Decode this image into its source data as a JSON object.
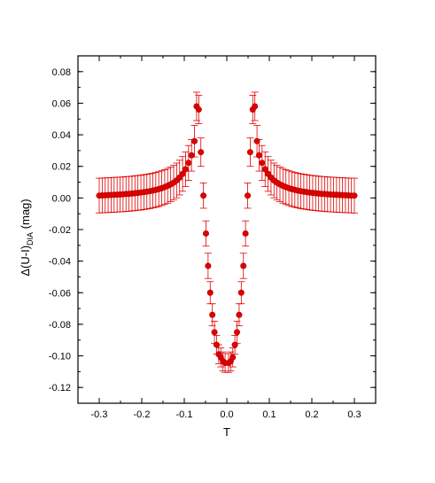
{
  "chart_data": {
    "type": "scatter",
    "xlabel": "T",
    "ylabel": {
      "prefix": "Δ(U-I)",
      "subscript": "DIA",
      "suffix": " (mag)"
    },
    "xlim": [
      -0.35,
      0.35
    ],
    "ylim": [
      -0.13,
      0.09
    ],
    "xticks": [
      -0.3,
      -0.2,
      -0.1,
      0.0,
      0.1,
      0.2,
      0.3
    ],
    "xtick_labels": [
      "-0.3",
      "-0.2",
      "-0.1",
      "0.0",
      "0.1",
      "0.2",
      "0.3"
    ],
    "yticks": [
      0.08,
      0.06,
      0.04,
      0.02,
      0.0,
      -0.02,
      -0.04,
      -0.06,
      -0.08,
      -0.1,
      -0.12
    ],
    "ytick_labels": [
      "0.08",
      "0.06",
      "0.04",
      "0.02",
      "0.00",
      "-0.02",
      "-0.04",
      "-0.06",
      "-0.08",
      "-0.10",
      "-0.12"
    ],
    "grid": false,
    "marker_color": "#e00000",
    "series": [
      {
        "points": [
          {
            "x": -0.3,
            "y": 0.0015,
            "err": 0.011
          },
          {
            "x": -0.293,
            "y": 0.0016,
            "err": 0.011
          },
          {
            "x": -0.286,
            "y": 0.0017,
            "err": 0.011
          },
          {
            "x": -0.279,
            "y": 0.0018,
            "err": 0.011
          },
          {
            "x": -0.272,
            "y": 0.0019,
            "err": 0.011
          },
          {
            "x": -0.265,
            "y": 0.002,
            "err": 0.011
          },
          {
            "x": -0.258,
            "y": 0.0021,
            "err": 0.011
          },
          {
            "x": -0.251,
            "y": 0.0022,
            "err": 0.011
          },
          {
            "x": -0.244,
            "y": 0.0023,
            "err": 0.011
          },
          {
            "x": -0.237,
            "y": 0.0025,
            "err": 0.011
          },
          {
            "x": -0.23,
            "y": 0.0026,
            "err": 0.011
          },
          {
            "x": -0.223,
            "y": 0.0028,
            "err": 0.011
          },
          {
            "x": -0.216,
            "y": 0.003,
            "err": 0.011
          },
          {
            "x": -0.209,
            "y": 0.0032,
            "err": 0.011
          },
          {
            "x": -0.202,
            "y": 0.0034,
            "err": 0.011
          },
          {
            "x": -0.195,
            "y": 0.0037,
            "err": 0.011
          },
          {
            "x": -0.188,
            "y": 0.004,
            "err": 0.011
          },
          {
            "x": -0.181,
            "y": 0.0043,
            "err": 0.011
          },
          {
            "x": -0.174,
            "y": 0.0047,
            "err": 0.011
          },
          {
            "x": -0.167,
            "y": 0.0051,
            "err": 0.011
          },
          {
            "x": -0.16,
            "y": 0.0056,
            "err": 0.011
          },
          {
            "x": -0.153,
            "y": 0.0062,
            "err": 0.011
          },
          {
            "x": -0.146,
            "y": 0.0069,
            "err": 0.011
          },
          {
            "x": -0.139,
            "y": 0.0077,
            "err": 0.011
          },
          {
            "x": -0.132,
            "y": 0.0086,
            "err": 0.011
          },
          {
            "x": -0.125,
            "y": 0.0097,
            "err": 0.011
          },
          {
            "x": -0.118,
            "y": 0.0111,
            "err": 0.011
          },
          {
            "x": -0.111,
            "y": 0.0129,
            "err": 0.011
          },
          {
            "x": -0.104,
            "y": 0.0152,
            "err": 0.011
          },
          {
            "x": -0.097,
            "y": 0.0182,
            "err": 0.011
          },
          {
            "x": -0.09,
            "y": 0.0222,
            "err": 0.011
          },
          {
            "x": -0.083,
            "y": 0.027,
            "err": 0.01
          },
          {
            "x": -0.076,
            "y": 0.036,
            "err": 0.01
          },
          {
            "x": -0.071,
            "y": 0.058,
            "err": 0.009
          },
          {
            "x": -0.066,
            "y": 0.056,
            "err": 0.009
          },
          {
            "x": -0.061,
            "y": 0.029,
            "err": 0.009
          },
          {
            "x": -0.055,
            "y": 0.0015,
            "err": 0.008
          },
          {
            "x": -0.049,
            "y": -0.0225,
            "err": 0.008
          },
          {
            "x": -0.044,
            "y": -0.043,
            "err": 0.008
          },
          {
            "x": -0.039,
            "y": -0.06,
            "err": 0.007
          },
          {
            "x": -0.034,
            "y": -0.074,
            "err": 0.007
          },
          {
            "x": -0.029,
            "y": -0.085,
            "err": 0.007
          },
          {
            "x": -0.024,
            "y": -0.093,
            "err": 0.006
          },
          {
            "x": -0.019,
            "y": -0.099,
            "err": 0.006
          },
          {
            "x": -0.014,
            "y": -0.101,
            "err": 0.006
          },
          {
            "x": -0.009,
            "y": -0.1035,
            "err": 0.006
          },
          {
            "x": -0.004,
            "y": -0.1045,
            "err": 0.006
          },
          {
            "x": 0.004,
            "y": -0.1045,
            "err": 0.006
          },
          {
            "x": 0.009,
            "y": -0.1035,
            "err": 0.006
          },
          {
            "x": 0.014,
            "y": -0.101,
            "err": 0.006
          },
          {
            "x": 0.019,
            "y": -0.093,
            "err": 0.006
          },
          {
            "x": 0.024,
            "y": -0.085,
            "err": 0.007
          },
          {
            "x": 0.029,
            "y": -0.074,
            "err": 0.007
          },
          {
            "x": 0.034,
            "y": -0.06,
            "err": 0.007
          },
          {
            "x": 0.039,
            "y": -0.043,
            "err": 0.008
          },
          {
            "x": 0.044,
            "y": -0.0225,
            "err": 0.008
          },
          {
            "x": 0.049,
            "y": 0.0015,
            "err": 0.008
          },
          {
            "x": 0.055,
            "y": 0.029,
            "err": 0.009
          },
          {
            "x": 0.061,
            "y": 0.056,
            "err": 0.009
          },
          {
            "x": 0.066,
            "y": 0.058,
            "err": 0.009
          },
          {
            "x": 0.071,
            "y": 0.036,
            "err": 0.01
          },
          {
            "x": 0.076,
            "y": 0.027,
            "err": 0.01
          },
          {
            "x": 0.083,
            "y": 0.0222,
            "err": 0.011
          },
          {
            "x": 0.09,
            "y": 0.0182,
            "err": 0.011
          },
          {
            "x": 0.097,
            "y": 0.0152,
            "err": 0.011
          },
          {
            "x": 0.104,
            "y": 0.0129,
            "err": 0.011
          },
          {
            "x": 0.111,
            "y": 0.0111,
            "err": 0.011
          },
          {
            "x": 0.118,
            "y": 0.0097,
            "err": 0.011
          },
          {
            "x": 0.125,
            "y": 0.0086,
            "err": 0.011
          },
          {
            "x": 0.132,
            "y": 0.0077,
            "err": 0.011
          },
          {
            "x": 0.139,
            "y": 0.0069,
            "err": 0.011
          },
          {
            "x": 0.146,
            "y": 0.0062,
            "err": 0.011
          },
          {
            "x": 0.153,
            "y": 0.0056,
            "err": 0.011
          },
          {
            "x": 0.16,
            "y": 0.0051,
            "err": 0.011
          },
          {
            "x": 0.167,
            "y": 0.0047,
            "err": 0.011
          },
          {
            "x": 0.174,
            "y": 0.0043,
            "err": 0.011
          },
          {
            "x": 0.181,
            "y": 0.004,
            "err": 0.011
          },
          {
            "x": 0.188,
            "y": 0.0037,
            "err": 0.011
          },
          {
            "x": 0.195,
            "y": 0.0034,
            "err": 0.011
          },
          {
            "x": 0.202,
            "y": 0.0032,
            "err": 0.011
          },
          {
            "x": 0.209,
            "y": 0.003,
            "err": 0.011
          },
          {
            "x": 0.216,
            "y": 0.0028,
            "err": 0.011
          },
          {
            "x": 0.223,
            "y": 0.0026,
            "err": 0.011
          },
          {
            "x": 0.23,
            "y": 0.0025,
            "err": 0.011
          },
          {
            "x": 0.237,
            "y": 0.0023,
            "err": 0.011
          },
          {
            "x": 0.244,
            "y": 0.0022,
            "err": 0.011
          },
          {
            "x": 0.251,
            "y": 0.0021,
            "err": 0.011
          },
          {
            "x": 0.258,
            "y": 0.002,
            "err": 0.011
          },
          {
            "x": 0.265,
            "y": 0.0019,
            "err": 0.011
          },
          {
            "x": 0.272,
            "y": 0.0018,
            "err": 0.011
          },
          {
            "x": 0.279,
            "y": 0.0017,
            "err": 0.011
          },
          {
            "x": 0.286,
            "y": 0.0016,
            "err": 0.011
          },
          {
            "x": 0.293,
            "y": 0.0015,
            "err": 0.011
          },
          {
            "x": 0.3,
            "y": 0.0015,
            "err": 0.011
          }
        ]
      }
    ]
  }
}
